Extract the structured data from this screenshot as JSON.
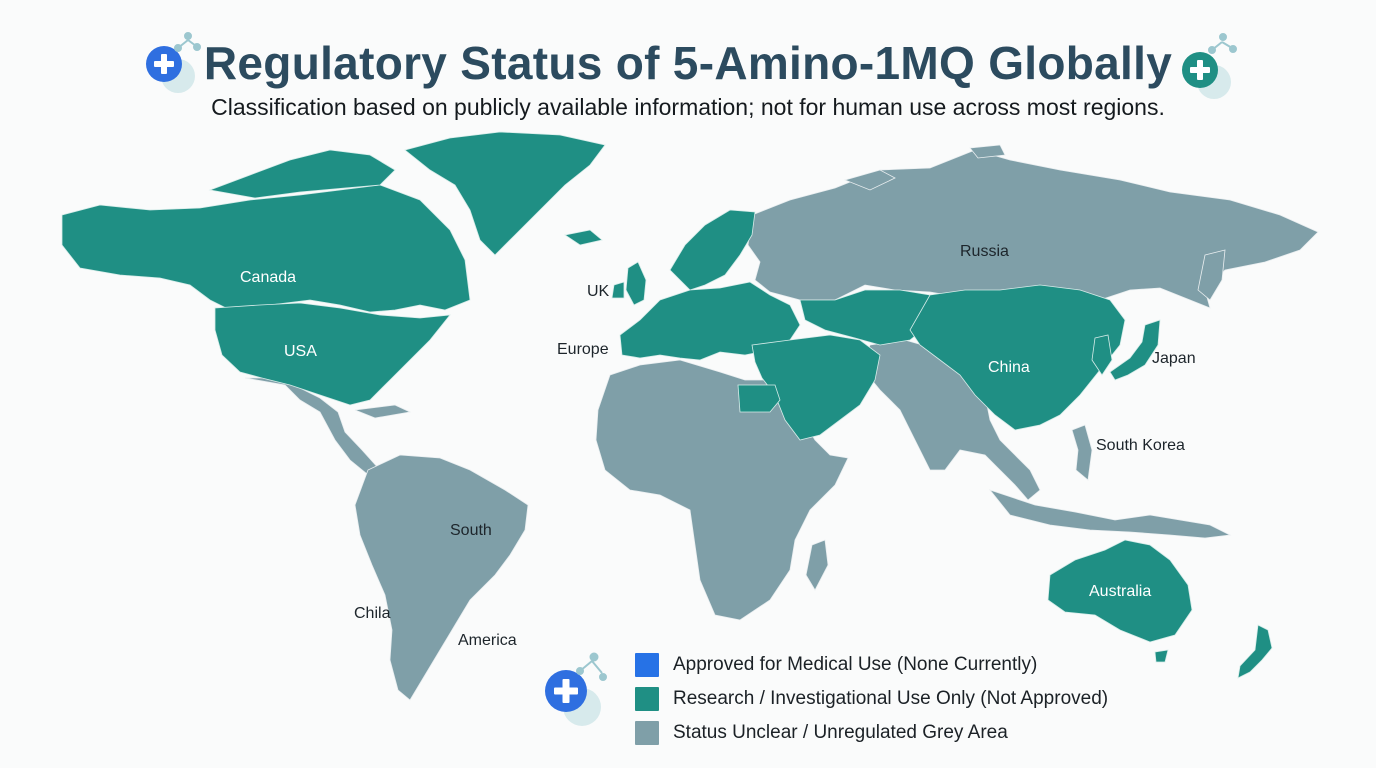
{
  "header": {
    "title": "Regulatory Status of 5-Amino-1MQ Globally",
    "subtitle": "Classification based on publicly available information; not for human use across most regions."
  },
  "colors": {
    "approved": "#2672e6",
    "research": "#1f8f84",
    "unclear": "#7f9fa8",
    "icon_blue": "#2f6fe0",
    "icon_teal": "#1f8f84"
  },
  "map_labels": {
    "canada": "Canada",
    "usa": "USA",
    "uk": "UK",
    "europe": "Europe",
    "russia": "Russia",
    "china": "China",
    "japan": "Japan",
    "south_korea": "South Korea",
    "south": "South",
    "chila": "Chila",
    "america": "America",
    "australia": "Australia"
  },
  "legend": {
    "items": [
      {
        "label": "Approved for Medical Use (None Currently)",
        "status": "approved"
      },
      {
        "label": "Research / Investigational Use Only (Not Approved)",
        "status": "research"
      },
      {
        "label": "Status Unclear / Unregulated Grey Area",
        "status": "unclear"
      }
    ]
  },
  "icons": [
    "medical-plus-icon",
    "molecule-icon"
  ]
}
